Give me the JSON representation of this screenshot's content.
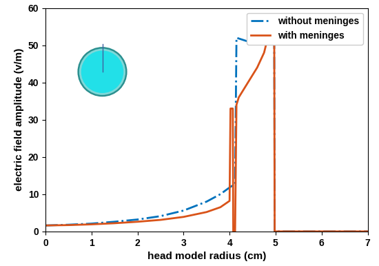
{
  "chart_data": {
    "type": "line",
    "x_label": "head model radius (cm)",
    "y_label": "electric field amplitude (v/m)",
    "x": [
      0,
      0.5,
      1,
      1.5,
      2,
      2.5,
      3,
      3.5,
      3.8,
      4.0,
      4.02,
      4.07,
      4.08,
      4.12,
      4.15,
      4.2,
      4.4,
      4.6,
      4.75,
      4.85,
      4.95,
      4.97,
      4.98,
      5,
      6,
      7
    ],
    "series": [
      {
        "name": "without meninges",
        "color": "#0072bd",
        "line_style": "dashdot",
        "values": [
          1.6,
          1.8,
          2.1,
          2.6,
          3.2,
          4.1,
          5.6,
          8.0,
          10.0,
          11.8,
          12.0,
          12.3,
          12.4,
          12.6,
          52,
          51.8,
          51,
          51.8,
          52.2,
          52.5,
          52.8,
          52.9,
          0,
          0,
          0,
          0
        ]
      },
      {
        "name": "with meninges",
        "color": "#d95319",
        "line_style": "solid",
        "values": [
          1.6,
          1.7,
          1.9,
          2.2,
          2.6,
          3.1,
          3.9,
          5.2,
          6.5,
          8.2,
          33,
          33,
          0,
          0,
          34,
          36,
          40,
          44,
          48,
          53,
          56,
          57,
          0,
          0,
          0,
          0
        ]
      }
    ],
    "xlim": [
      0,
      7
    ],
    "xticks": [
      0,
      1,
      2,
      3,
      4,
      5,
      6,
      7
    ],
    "ylim": [
      0,
      60
    ],
    "yticks": [
      0,
      10,
      20,
      30,
      40,
      50,
      60
    ],
    "grid": false,
    "legend": "upper right"
  }
}
